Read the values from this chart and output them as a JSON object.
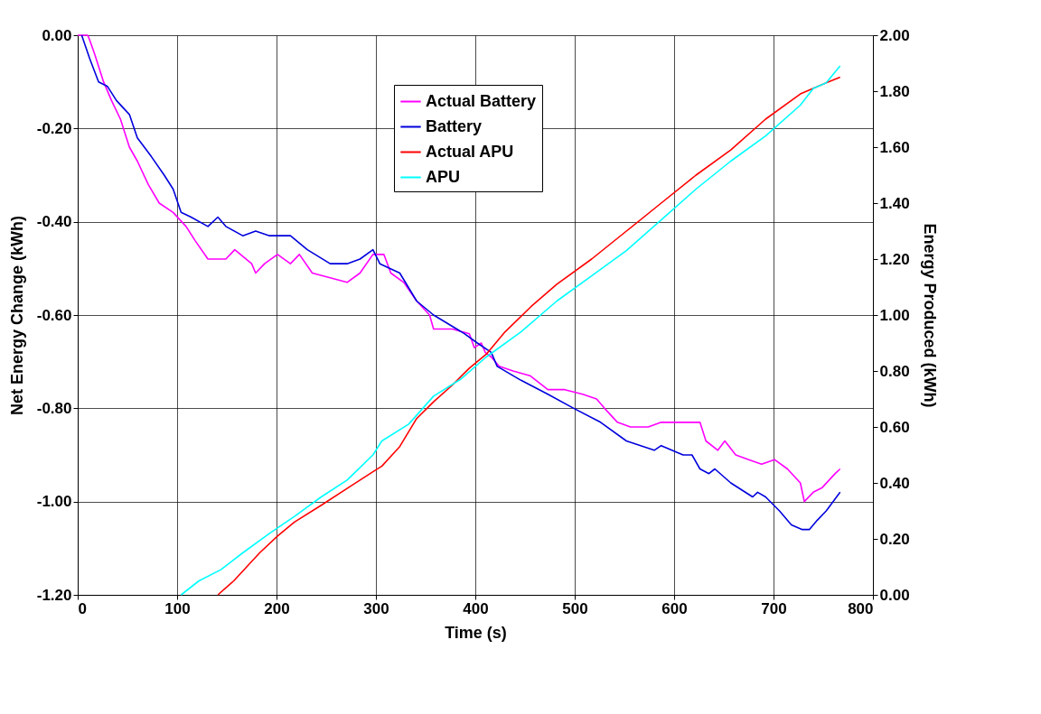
{
  "chart_data": {
    "type": "line",
    "xlabel": "Time (s)",
    "ylabel": "Net Energy Change (kWh)",
    "y2label": "Energy Produced (kWh)",
    "xlim": [
      0,
      800
    ],
    "xticks": [
      0,
      100,
      200,
      300,
      400,
      500,
      600,
      700,
      800
    ],
    "ylim": [
      -1.2,
      0
    ],
    "yticks": [
      {
        "value": -1.2,
        "label": "-1.20"
      },
      {
        "value": -1.0,
        "label": "-1.00"
      },
      {
        "value": -0.8,
        "label": "-0.80"
      },
      {
        "value": -0.6,
        "label": "-0.60"
      },
      {
        "value": -0.4,
        "label": "-0.40"
      },
      {
        "value": -0.2,
        "label": "-0.20"
      },
      {
        "value": 0,
        "label": "0.00"
      }
    ],
    "y2lim": [
      0,
      2
    ],
    "y2ticks": [
      {
        "value": 0,
        "label": "0.00"
      },
      {
        "value": 0.2,
        "label": "0.20"
      },
      {
        "value": 0.4,
        "label": "0.40"
      },
      {
        "value": 0.6,
        "label": "0.60"
      },
      {
        "value": 0.8,
        "label": "0.80"
      },
      {
        "value": 1.0,
        "label": "1.00"
      },
      {
        "value": 1.2,
        "label": "1.20"
      },
      {
        "value": 1.4,
        "label": "1.40"
      },
      {
        "value": 1.6,
        "label": "1.60"
      },
      {
        "value": 1.8,
        "label": "1.80"
      },
      {
        "value": 2.0,
        "label": "2.00"
      }
    ],
    "grid": true,
    "legend": "top",
    "marker": "none",
    "line_style": "solid",
    "series": [
      {
        "name": "Actual Battery",
        "color": "#ff00ff",
        "x": [
          0,
          10,
          12,
          17,
          26,
          34,
          43,
          52,
          60,
          71,
          82,
          96,
          109,
          118,
          131,
          149,
          158,
          175,
          179,
          188,
          201,
          214,
          223,
          236,
          254,
          271,
          284,
          297,
          308,
          315,
          328,
          341,
          354,
          358,
          377,
          394,
          399,
          406,
          410,
          416,
          424,
          438,
          455,
          473,
          490,
          508,
          522,
          530,
          543,
          556,
          574,
          587,
          609,
          626,
          632,
          644,
          651,
          662,
          675,
          688,
          701,
          714,
          727,
          731,
          740,
          749,
          762,
          767
        ],
        "values": [
          0,
          0,
          -0.01,
          -0.04,
          -0.1,
          -0.14,
          -0.18,
          -0.24,
          -0.27,
          -0.32,
          -0.36,
          -0.38,
          -0.41,
          -0.44,
          -0.48,
          -0.48,
          -0.46,
          -0.49,
          -0.51,
          -0.49,
          -0.47,
          -0.49,
          -0.47,
          -0.51,
          -0.52,
          -0.53,
          -0.51,
          -0.47,
          -0.47,
          -0.51,
          -0.53,
          -0.57,
          -0.6,
          -0.63,
          -0.63,
          -0.64,
          -0.67,
          -0.66,
          -0.68,
          -0.69,
          -0.71,
          -0.72,
          -0.73,
          -0.76,
          -0.76,
          -0.77,
          -0.78,
          -0.8,
          -0.83,
          -0.84,
          -0.84,
          -0.83,
          -0.83,
          -0.83,
          -0.87,
          -0.89,
          -0.87,
          -0.9,
          -0.91,
          -0.92,
          -0.91,
          -0.93,
          -0.96,
          -1.0,
          -0.98,
          -0.97,
          -0.94,
          -0.93
        ]
      },
      {
        "name": "Battery",
        "color": "#0000dd",
        "x": [
          4,
          12,
          21,
          30,
          39,
          52,
          60,
          74,
          87,
          96,
          104,
          114,
          131,
          141,
          149,
          166,
          179,
          193,
          214,
          231,
          254,
          271,
          284,
          297,
          304,
          324,
          341,
          358,
          389,
          402,
          416,
          422,
          446,
          473,
          499,
          526,
          552,
          580,
          587,
          609,
          618,
          626,
          635,
          641,
          657,
          679,
          684,
          692,
          706,
          718,
          729,
          736,
          744,
          753,
          767
        ],
        "values": [
          0,
          -0.05,
          -0.1,
          -0.11,
          -0.14,
          -0.17,
          -0.22,
          -0.26,
          -0.3,
          -0.33,
          -0.38,
          -0.39,
          -0.41,
          -0.39,
          -0.41,
          -0.43,
          -0.42,
          -0.43,
          -0.43,
          -0.46,
          -0.49,
          -0.49,
          -0.48,
          -0.46,
          -0.49,
          -0.51,
          -0.57,
          -0.6,
          -0.64,
          -0.66,
          -0.68,
          -0.71,
          -0.74,
          -0.77,
          -0.8,
          -0.83,
          -0.87,
          -0.89,
          -0.88,
          -0.9,
          -0.9,
          -0.93,
          -0.94,
          -0.93,
          -0.96,
          -0.99,
          -0.98,
          -0.99,
          -1.02,
          -1.05,
          -1.06,
          -1.06,
          -1.04,
          -1.02,
          -0.98
        ]
      },
      {
        "name": "Actual APU",
        "color": "#ff0000",
        "axis": "y2",
        "x": [
          141,
          157,
          183,
          201,
          218,
          245,
          271,
          297,
          306,
          324,
          341,
          358,
          377,
          394,
          411,
          430,
          456,
          482,
          517,
          552,
          587,
          622,
          657,
          692,
          727,
          753,
          767
        ],
        "values": [
          0,
          0.05,
          0.15,
          0.21,
          0.26,
          0.32,
          0.38,
          0.44,
          0.46,
          0.53,
          0.63,
          0.69,
          0.75,
          0.81,
          0.86,
          0.94,
          1.03,
          1.11,
          1.2,
          1.3,
          1.4,
          1.5,
          1.59,
          1.7,
          1.79,
          1.83,
          1.85
        ]
      },
      {
        "name": "APU",
        "color": "#00ffff",
        "axis": "y2",
        "x": [
          104,
          122,
          144,
          166,
          193,
          218,
          245,
          271,
          297,
          306,
          333,
          358,
          385,
          411,
          446,
          482,
          517,
          552,
          587,
          622,
          657,
          692,
          727,
          740,
          753,
          767
        ],
        "values": [
          0,
          0.05,
          0.09,
          0.15,
          0.22,
          0.28,
          0.35,
          0.41,
          0.5,
          0.55,
          0.61,
          0.71,
          0.77,
          0.85,
          0.94,
          1.05,
          1.14,
          1.23,
          1.34,
          1.45,
          1.55,
          1.64,
          1.75,
          1.81,
          1.83,
          1.89
        ]
      }
    ]
  }
}
